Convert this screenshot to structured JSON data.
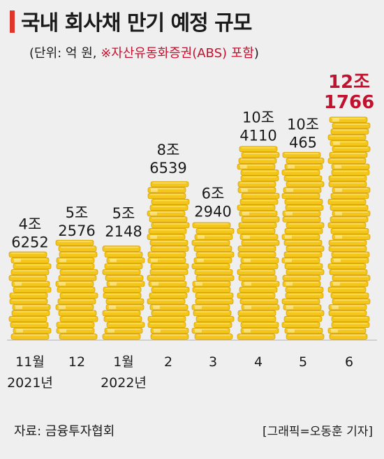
{
  "header": {
    "title": "국내 회사채 만기 예정 규모",
    "subtitle_prefix": "(단위: 억 원, ",
    "subtitle_note": "※자산유동화증권(ABS) 포함",
    "subtitle_suffix": ")"
  },
  "footer": {
    "source": "자료: 금융투자협회",
    "credit": "[그래픽=오동훈 기자]"
  },
  "colors": {
    "coin": "#f3c619",
    "coin_dark": "#d29c07",
    "coin_light": "#fbe27a",
    "highlight": "#c0122e",
    "text": "#1a1a1a"
  },
  "chart_data": {
    "type": "bar",
    "unit": "억 원",
    "categories": [
      "11월\n2021년",
      "12",
      "1월\n2022년",
      "2",
      "3",
      "4",
      "5",
      "6"
    ],
    "values": [
      46252,
      52576,
      52148,
      86539,
      62940,
      104110,
      100465,
      121766
    ],
    "value_labels": [
      [
        "4조",
        "6252"
      ],
      [
        "5조",
        "2576"
      ],
      [
        "5조",
        "2148"
      ],
      [
        "8조",
        "6539"
      ],
      [
        "6조",
        "2940"
      ],
      [
        "10조",
        "4110"
      ],
      [
        "10조",
        "465"
      ],
      [
        "12조",
        "1766"
      ]
    ],
    "highlight_index": 7,
    "ylim": [
      0,
      121766
    ]
  }
}
